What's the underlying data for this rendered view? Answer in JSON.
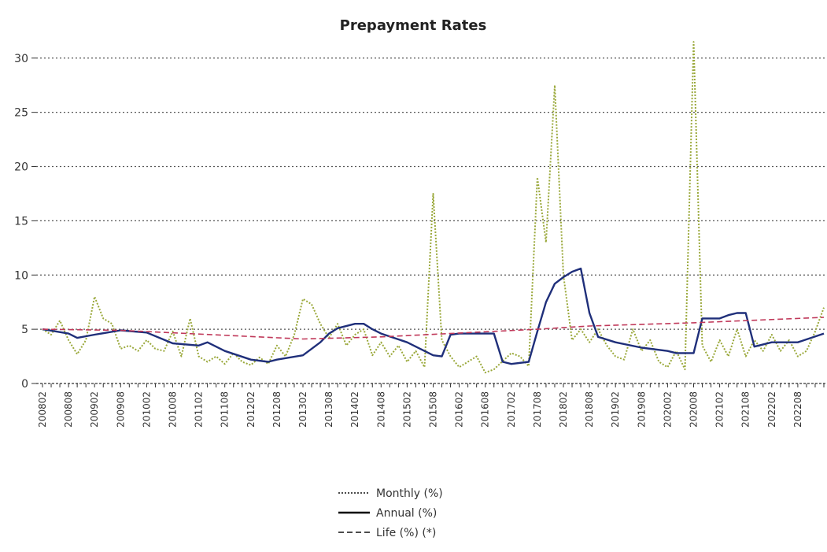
{
  "chart_data": {
    "type": "line",
    "title": "Prepayment Rates",
    "xlabel": "",
    "ylabel": "",
    "ylim": [
      0,
      31
    ],
    "yticks": [
      0,
      5,
      10,
      15,
      20,
      25,
      30
    ],
    "grid": true,
    "legend_position": "bottom",
    "x_tick_labels": [
      "200802",
      "200808",
      "200902",
      "200908",
      "201002",
      "201008",
      "201102",
      "201108",
      "201202",
      "201208",
      "201302",
      "201308",
      "201402",
      "201408",
      "201502",
      "201508",
      "201602",
      "201608",
      "201702",
      "201708",
      "201802",
      "201808",
      "201902",
      "201908",
      "202002",
      "202008",
      "202102",
      "202108",
      "202202",
      "202208"
    ],
    "series": [
      {
        "name": "Monthly (%)",
        "style": "dotted",
        "color": "#9aa83a",
        "points": [
          [
            "200802",
            5
          ],
          [
            "200804",
            4.5
          ],
          [
            "200806",
            5.8
          ],
          [
            "200808",
            4
          ],
          [
            "200810",
            2.7
          ],
          [
            "200812",
            4
          ],
          [
            "200902",
            8
          ],
          [
            "200904",
            6
          ],
          [
            "200906",
            5.5
          ],
          [
            "200908",
            3.2
          ],
          [
            "200910",
            3.5
          ],
          [
            "200912",
            3
          ],
          [
            "201002",
            4
          ],
          [
            "201004",
            3.2
          ],
          [
            "201006",
            3
          ],
          [
            "201008",
            4.8
          ],
          [
            "201010",
            2.5
          ],
          [
            "201012",
            6
          ],
          [
            "201102",
            2.5
          ],
          [
            "201104",
            2
          ],
          [
            "201106",
            2.5
          ],
          [
            "201108",
            1.8
          ],
          [
            "201110",
            2.8
          ],
          [
            "201112",
            2
          ],
          [
            "201202",
            1.7
          ],
          [
            "201204",
            2.4
          ],
          [
            "201206",
            1.8
          ],
          [
            "201208",
            3.5
          ],
          [
            "201210",
            2.5
          ],
          [
            "201212",
            4.5
          ],
          [
            "201302",
            7.8
          ],
          [
            "201304",
            7.3
          ],
          [
            "201306",
            5.5
          ],
          [
            "201308",
            4.2
          ],
          [
            "201310",
            5.5
          ],
          [
            "201312",
            3.5
          ],
          [
            "201402",
            4.5
          ],
          [
            "201404",
            5
          ],
          [
            "201406",
            2.6
          ],
          [
            "201408",
            3.8
          ],
          [
            "201410",
            2.5
          ],
          [
            "201412",
            3.5
          ],
          [
            "201502",
            2
          ],
          [
            "201504",
            3
          ],
          [
            "201506",
            1.5
          ],
          [
            "201508",
            17.5
          ],
          [
            "201510",
            4
          ],
          [
            "201512",
            2.5
          ],
          [
            "201602",
            1.5
          ],
          [
            "201604",
            2
          ],
          [
            "201606",
            2.5
          ],
          [
            "201608",
            1
          ],
          [
            "201610",
            1.3
          ],
          [
            "201702",
            2.8
          ],
          [
            "201704",
            2.5
          ],
          [
            "201706",
            1.6
          ],
          [
            "201708",
            19
          ],
          [
            "201710",
            13
          ],
          [
            "201712",
            27.5
          ],
          [
            "201802",
            10
          ],
          [
            "201804",
            4
          ],
          [
            "201806",
            5
          ],
          [
            "201808",
            3.8
          ],
          [
            "201810",
            5
          ],
          [
            "201812",
            3.5
          ],
          [
            "201902",
            2.5
          ],
          [
            "201904",
            2.2
          ],
          [
            "201906",
            5
          ],
          [
            "201908",
            3
          ],
          [
            "201910",
            4
          ],
          [
            "201912",
            2
          ],
          [
            "202002",
            1.5
          ],
          [
            "202004",
            3
          ],
          [
            "202006",
            1.3
          ],
          [
            "202008",
            31.5
          ],
          [
            "202010",
            3.5
          ],
          [
            "202012",
            2
          ],
          [
            "202102",
            4
          ],
          [
            "202104",
            2.5
          ],
          [
            "202106",
            5
          ],
          [
            "202108",
            2.5
          ],
          [
            "202110",
            4
          ],
          [
            "202112",
            3
          ],
          [
            "202202",
            4.5
          ],
          [
            "202204",
            3
          ],
          [
            "202206",
            4
          ],
          [
            "202208",
            2.5
          ],
          [
            "202210",
            3
          ],
          [
            "202212",
            4.8
          ],
          [
            "202302",
            7
          ]
        ]
      },
      {
        "name": "Annual (%)",
        "style": "solid",
        "color": "#1f2f7a",
        "points": [
          [
            "200802",
            5
          ],
          [
            "200808",
            4.6
          ],
          [
            "200810",
            4.2
          ],
          [
            "200902",
            4.5
          ],
          [
            "200908",
            4.9
          ],
          [
            "201002",
            4.7
          ],
          [
            "201008",
            3.7
          ],
          [
            "201102",
            3.5
          ],
          [
            "201104",
            3.8
          ],
          [
            "201108",
            3
          ],
          [
            "201202",
            2.2
          ],
          [
            "201206",
            2
          ],
          [
            "201208",
            2.2
          ],
          [
            "201302",
            2.6
          ],
          [
            "201306",
            3.8
          ],
          [
            "201308",
            4.6
          ],
          [
            "201310",
            5.1
          ],
          [
            "201402",
            5.5
          ],
          [
            "201404",
            5.5
          ],
          [
            "201406",
            5
          ],
          [
            "201408",
            4.6
          ],
          [
            "201502",
            3.8
          ],
          [
            "201508",
            2.6
          ],
          [
            "201510",
            2.5
          ],
          [
            "201512",
            4.5
          ],
          [
            "201602",
            4.6
          ],
          [
            "201608",
            4.6
          ],
          [
            "201610",
            4.6
          ],
          [
            "201612",
            2
          ],
          [
            "201702",
            1.8
          ],
          [
            "201706",
            2
          ],
          [
            "201708",
            4.8
          ],
          [
            "201710",
            7.5
          ],
          [
            "201712",
            9.2
          ],
          [
            "201802",
            9.8
          ],
          [
            "201804",
            10.3
          ],
          [
            "201806",
            10.6
          ],
          [
            "201808",
            6.5
          ],
          [
            "201810",
            4.3
          ],
          [
            "201902",
            3.8
          ],
          [
            "201908",
            3.3
          ],
          [
            "202002",
            3
          ],
          [
            "202004",
            2.8
          ],
          [
            "202008",
            2.8
          ],
          [
            "202010",
            6
          ],
          [
            "202102",
            6
          ],
          [
            "202104",
            6.3
          ],
          [
            "202106",
            6.5
          ],
          [
            "202108",
            6.5
          ],
          [
            "202110",
            3.4
          ],
          [
            "202202",
            3.8
          ],
          [
            "202208",
            3.8
          ],
          [
            "202302",
            4.6
          ]
        ]
      },
      {
        "name": "Life (%) (*)",
        "style": "dashed",
        "color": "#c0395a",
        "points": [
          [
            "200802",
            5
          ],
          [
            "200908",
            4.9
          ],
          [
            "201302",
            4.1
          ],
          [
            "201408",
            4.3
          ],
          [
            "201708",
            5
          ],
          [
            "201808",
            5.3
          ],
          [
            "202008",
            5.6
          ],
          [
            "202302",
            6.1
          ]
        ]
      }
    ]
  }
}
